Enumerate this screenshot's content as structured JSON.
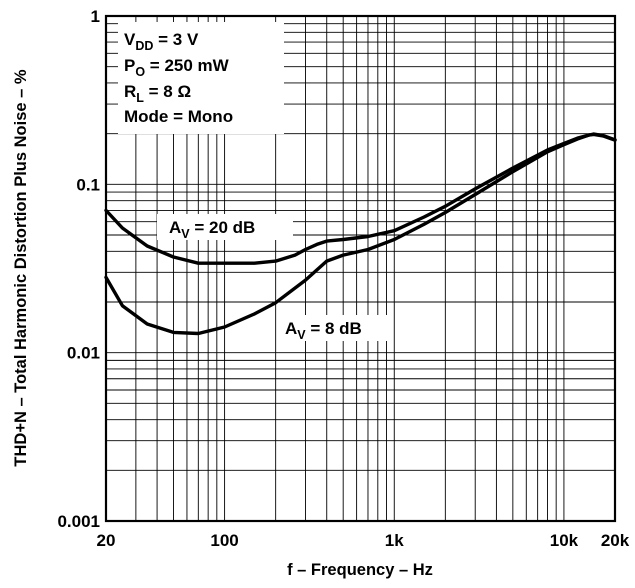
{
  "chart_data": {
    "type": "line",
    "xlabel": "f – Frequency – Hz",
    "ylabel": "THD+N – Total Harmonic Distortion Plus Noise – %",
    "x_scale": "log",
    "y_scale": "log",
    "xlim": [
      20,
      20000
    ],
    "ylim": [
      0.001,
      1
    ],
    "grid": true,
    "x_ticks": [
      {
        "value": 20,
        "label": "20"
      },
      {
        "value": 100,
        "label": "100"
      },
      {
        "value": 1000,
        "label": "1k"
      },
      {
        "value": 10000,
        "label": "10k"
      },
      {
        "value": 20000,
        "label": "20k"
      }
    ],
    "y_ticks": [
      {
        "value": 1,
        "label": "1"
      },
      {
        "value": 0.1,
        "label": "0.1"
      },
      {
        "value": 0.01,
        "label": "0.01"
      },
      {
        "value": 0.001,
        "label": "0.001"
      }
    ],
    "conditions": {
      "vdd": {
        "main": "V",
        "sub": "DD",
        "rest": " = 3 V"
      },
      "po": {
        "main": "P",
        "sub": "O",
        "rest": " = 250 mW"
      },
      "rl": {
        "main": "R",
        "sub": "L",
        "rest": " = 8 Ω"
      },
      "mode": "Mode = Mono"
    },
    "series": [
      {
        "name": "AV = 20 dB",
        "label": {
          "main": "A",
          "sub": "V",
          "rest": " = 20 dB"
        },
        "x": [
          20,
          25,
          35,
          50,
          70,
          100,
          150,
          200,
          260,
          300,
          350,
          400,
          500,
          700,
          1000,
          1500,
          2000,
          3000,
          5000,
          8000,
          10000,
          12000,
          14000,
          15000,
          17000,
          20000
        ],
        "y": [
          0.07,
          0.055,
          0.043,
          0.037,
          0.034,
          0.034,
          0.034,
          0.035,
          0.038,
          0.041,
          0.044,
          0.046,
          0.047,
          0.049,
          0.053,
          0.064,
          0.074,
          0.094,
          0.125,
          0.16,
          0.175,
          0.188,
          0.196,
          0.198,
          0.194,
          0.183
        ]
      },
      {
        "name": "AV = 8 dB",
        "label": {
          "main": "A",
          "sub": "V",
          "rest": " = 8 dB"
        },
        "x": [
          20,
          25,
          35,
          50,
          70,
          100,
          150,
          200,
          300,
          400,
          500,
          700,
          1000,
          1500,
          2000,
          3000,
          5000,
          8000,
          10000,
          12000,
          14000,
          15000,
          17000,
          20000
        ],
        "y": [
          0.028,
          0.019,
          0.0148,
          0.0132,
          0.013,
          0.0142,
          0.017,
          0.0198,
          0.027,
          0.035,
          0.038,
          0.041,
          0.047,
          0.058,
          0.068,
          0.087,
          0.119,
          0.156,
          0.172,
          0.186,
          0.196,
          0.199,
          0.195,
          0.184
        ]
      }
    ]
  }
}
